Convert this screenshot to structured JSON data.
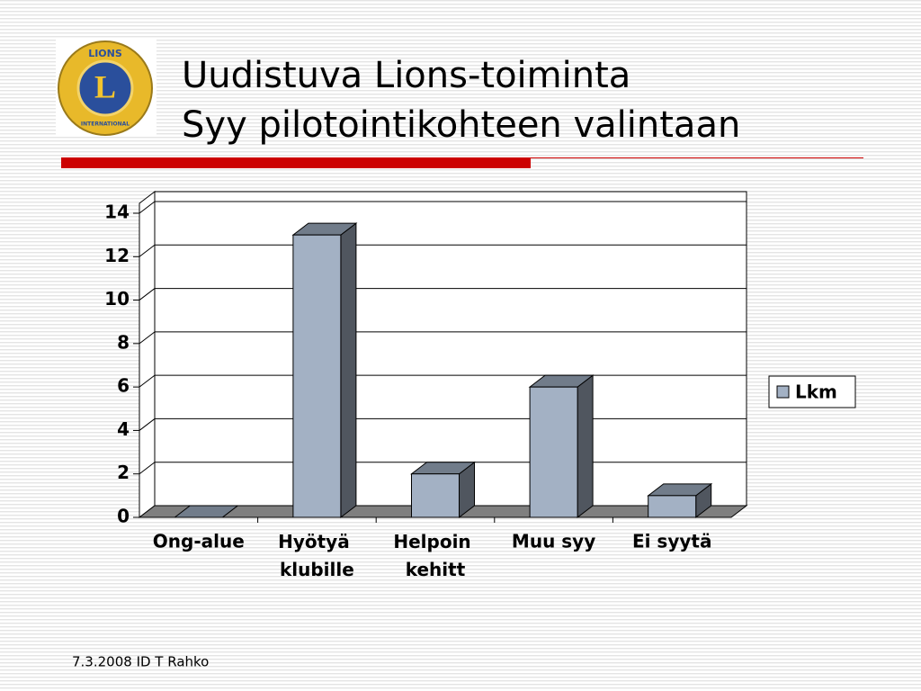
{
  "logo": {
    "top_text": "LIONS",
    "letter": "L",
    "bottom_text": "INTERNATIONAL"
  },
  "footer": "7.3.2008 ID T Rahko",
  "chart_data": {
    "type": "bar3d",
    "title": [
      "Uudistuva Lions-toiminta",
      "Syy pilotointikohteen valintaan"
    ],
    "categories": [
      "Ong-alue",
      "Hyötyä klubille",
      "Helpoin kehitt",
      "Muu syy",
      "Ei syytä"
    ],
    "series": [
      {
        "name": "Lkm",
        "color": "#a3b1c4",
        "values": [
          0,
          13,
          2,
          6,
          1
        ]
      }
    ],
    "ylim": [
      0,
      14
    ],
    "yticks": [
      0,
      2,
      4,
      6,
      8,
      10,
      12,
      14
    ],
    "grid": true,
    "legend": "right"
  }
}
